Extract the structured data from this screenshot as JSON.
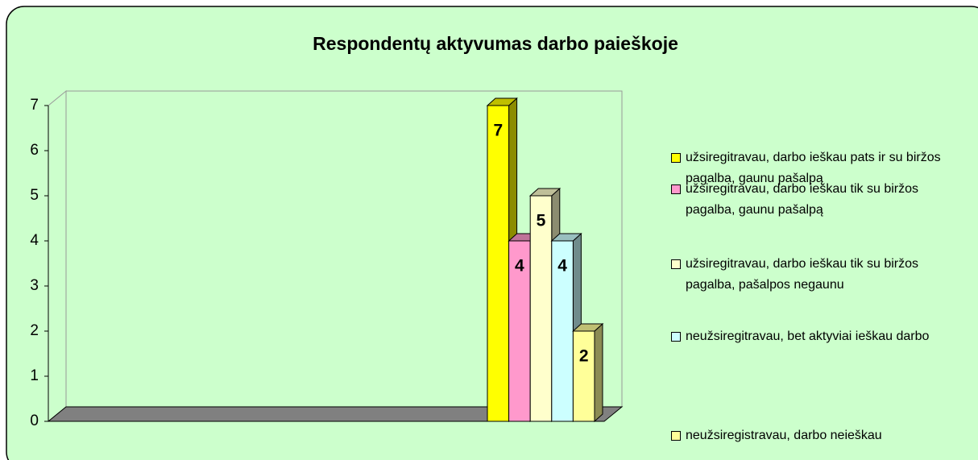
{
  "chart_data": {
    "type": "bar3d",
    "title": "Respondentų aktyvumas darbo paieškoje",
    "categories": [
      null
    ],
    "series": [
      {
        "name": "užsiregitravau, darbo ieškau pats ir su biržos pagalba, gaunu pašalpą",
        "color": "#ffff00",
        "values": [
          7
        ]
      },
      {
        "name": "užsiregitravau, darbo ieškau tik su biržos pagalba, gaunu pašalpą",
        "color": "#ff99cc",
        "values": [
          4
        ]
      },
      {
        "name": "užsiregitravau, darbo ieškau tik su biržos pagalba, pašalpos negaunu",
        "color": "#ffffcc",
        "values": [
          5
        ]
      },
      {
        "name": "neužsiregitravau, bet aktyviai ieškau darbo",
        "color": "#ccffff",
        "values": [
          4
        ]
      },
      {
        "name": "neužsiregistravau, darbo neieškau",
        "color": "#ffff99",
        "values": [
          2
        ]
      }
    ],
    "ylim": [
      0,
      7
    ],
    "yticks": [
      0,
      1,
      2,
      3,
      4,
      5,
      6,
      7
    ],
    "legend": "right",
    "background": "#ccffcc"
  }
}
